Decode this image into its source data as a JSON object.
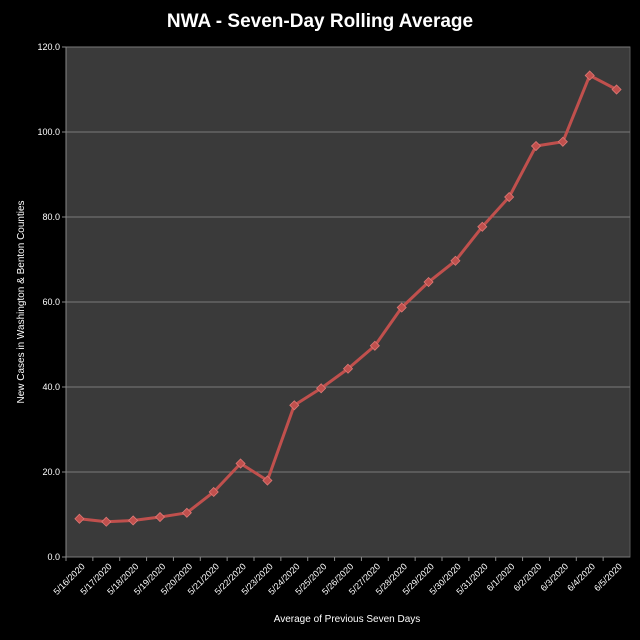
{
  "colors": {
    "background": "#000000",
    "plot_area": "#3a3a3a",
    "gridline": "#7a7a7a",
    "series_line": "#c0504d",
    "text": "#ffffff"
  },
  "chart_data": {
    "type": "line",
    "title": "NWA - Seven-Day Rolling Average",
    "xlabel": "Average of Previous Seven Days",
    "ylabel": "New Cases in Washington  & Benton Counties",
    "ylim": [
      0,
      120
    ],
    "y_ticks": [
      "0.0",
      "20.0",
      "40.0",
      "60.0",
      "80.0",
      "100.0",
      "120.0"
    ],
    "grid": true,
    "legend": "none",
    "categories": [
      "5/16/2020",
      "5/17/2020",
      "5/18/2020",
      "5/19/2020",
      "5/20/2020",
      "5/21/2020",
      "5/22/2020",
      "5/23/2020",
      "5/24/2020",
      "5/25/2020",
      "5/26/2020",
      "5/27/2020",
      "5/28/2020",
      "5/29/2020",
      "5/30/2020",
      "5/31/2020",
      "6/1/2020",
      "6/2/2020",
      "6/3/2020",
      "6/4/2020",
      "6/5/2020"
    ],
    "series": [
      {
        "values": [
          9.0,
          8.3,
          8.6,
          9.4,
          10.4,
          15.3,
          22.0,
          18.0,
          35.7,
          39.7,
          44.3,
          49.7,
          58.7,
          64.7,
          69.7,
          77.7,
          84.7,
          96.7,
          97.7,
          113.3,
          110.0
        ],
        "marker": "diamond"
      }
    ]
  }
}
